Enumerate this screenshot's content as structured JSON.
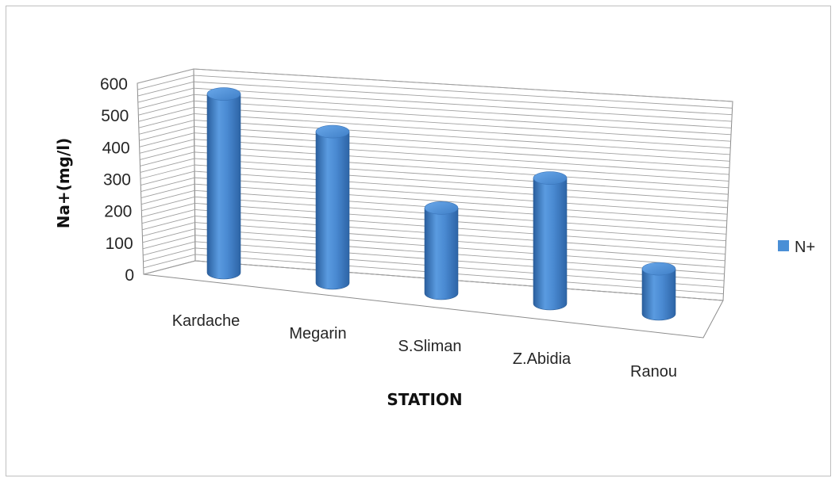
{
  "chart_data": {
    "type": "bar",
    "style": "3d-cylinder",
    "categories": [
      "Kardache",
      "Megarin",
      "S.Sliman",
      "Z.Abidia",
      "Ranou"
    ],
    "series": [
      {
        "name": "N+",
        "values": [
          555,
          470,
          265,
          390,
          140
        ],
        "color": "#4a8fd6"
      }
    ],
    "title": "",
    "xlabel": "STATION",
    "ylabel": "Na+(mg/l)",
    "ylim": [
      0,
      600
    ],
    "yticks": [
      "0",
      "100",
      "200",
      "300",
      "400",
      "500",
      "600"
    ],
    "grid": true,
    "legend_position": "right"
  }
}
